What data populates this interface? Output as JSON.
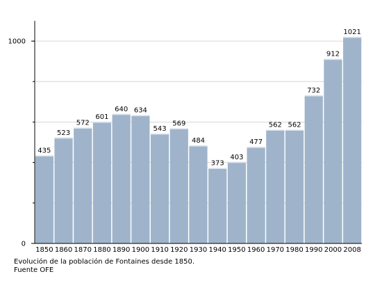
{
  "colors": {
    "bar": "#9fb4cb",
    "bar_highlight": "#ffffff",
    "grid": "#d6d6d6",
    "axis": "#000000",
    "text": "#000000"
  },
  "caption": {
    "line1": "Evolución de la población de Fontaines desde 1850.",
    "line2": "Fuente OFE"
  },
  "chart_data": {
    "type": "bar",
    "title": "",
    "xlabel": "",
    "ylabel": "",
    "ylim": [
      0,
      1100
    ],
    "ytick_labels": [
      "0",
      "1000"
    ],
    "grid": true,
    "legend": "none",
    "categories": [
      "1850",
      "1860",
      "1870",
      "1880",
      "1890",
      "1900",
      "1910",
      "1920",
      "1930",
      "1940",
      "1950",
      "1960",
      "1970",
      "1980",
      "1990",
      "2000",
      "2008"
    ],
    "values": [
      435,
      523,
      572,
      601,
      640,
      634,
      543,
      569,
      484,
      373,
      403,
      477,
      562,
      562,
      732,
      912,
      1021
    ],
    "data_labels": [
      "435",
      "523",
      "572",
      "601",
      "640",
      "634",
      "543",
      "569",
      "484",
      "373",
      "403",
      "477",
      "562",
      "562",
      "732",
      "912",
      "1021"
    ]
  }
}
